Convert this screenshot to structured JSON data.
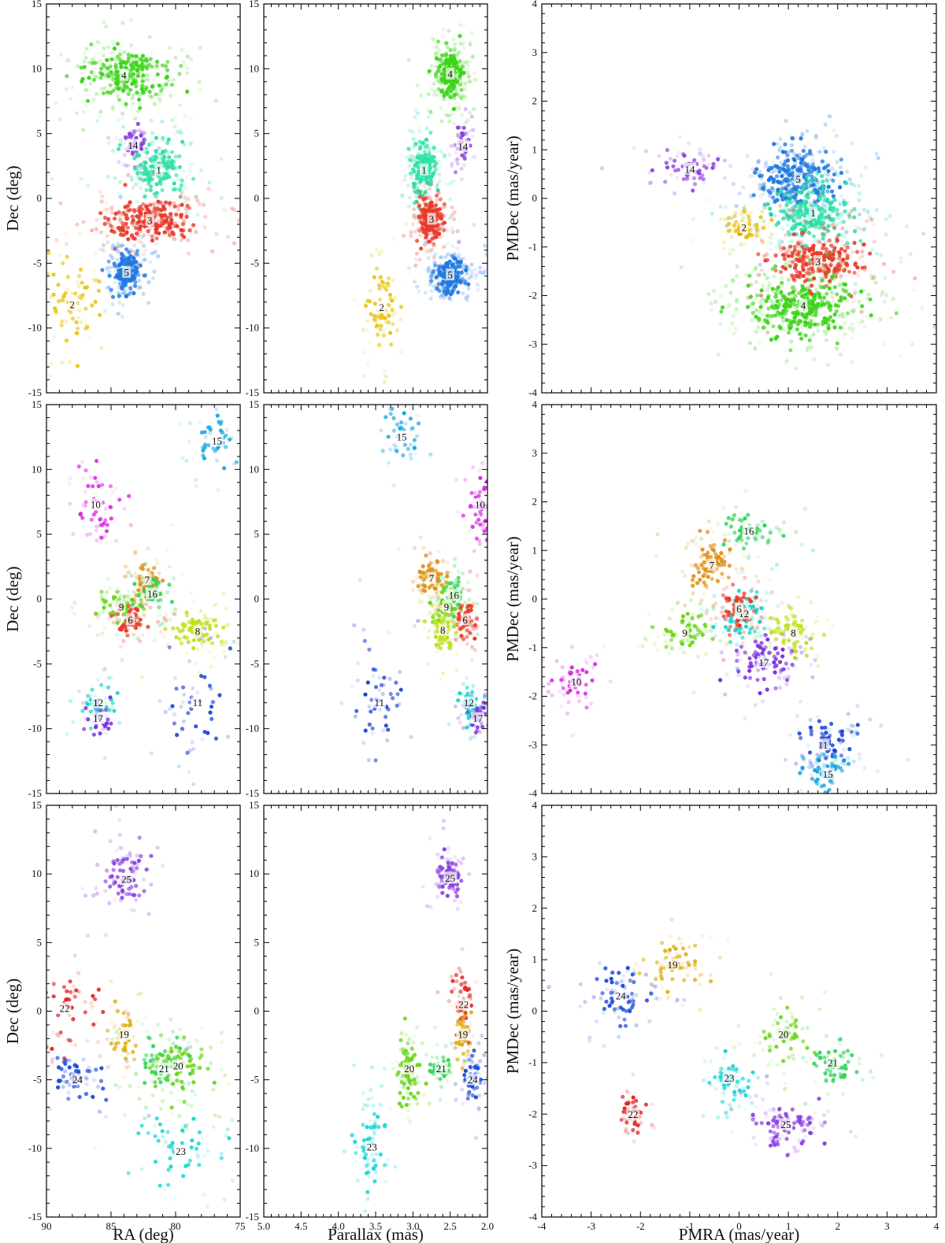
{
  "chart_data": [
    {
      "type": "scatter",
      "panel": "row1-radec",
      "xlabel": "",
      "ylabel": "Dec (deg)",
      "xlim": [
        90,
        75
      ],
      "ylim": [
        -15,
        15
      ],
      "xticks": [],
      "yticks": [
        "15",
        "10",
        "5",
        "0",
        "-5",
        "-10",
        "-15"
      ],
      "clusters": [
        {
          "name": "4",
          "color": "#3dd41a",
          "x": 84,
          "y": 9.5,
          "sx": 1.6,
          "sy": 0.9,
          "n": 320
        },
        {
          "name": "14",
          "color": "#8a3fe0",
          "x": 83.3,
          "y": 4.1,
          "sx": 0.5,
          "sy": 0.6,
          "n": 60
        },
        {
          "name": "1",
          "color": "#2fe0a8",
          "x": 81.3,
          "y": 2.2,
          "sx": 1.0,
          "sy": 1.0,
          "n": 220
        },
        {
          "name": "3",
          "color": "#e83a2a",
          "x": 82.0,
          "y": -1.7,
          "sx": 1.6,
          "sy": 0.7,
          "n": 320
        },
        {
          "name": "5",
          "color": "#1f78e0",
          "x": 83.8,
          "y": -5.7,
          "sx": 0.5,
          "sy": 0.8,
          "n": 240
        },
        {
          "name": "2",
          "color": "#e6c81a",
          "x": 88.0,
          "y": -8.2,
          "sx": 1.0,
          "sy": 1.6,
          "n": 90
        }
      ]
    },
    {
      "type": "scatter",
      "panel": "row1-parallax",
      "xlabel": "",
      "ylabel": "",
      "xlim": [
        5.0,
        2.0
      ],
      "ylim": [
        -15,
        15
      ],
      "xticks": [],
      "yticks": [
        "15",
        "10",
        "5",
        "0",
        "-5",
        "-10",
        "-15"
      ],
      "clusters": [
        {
          "name": "4",
          "color": "#3dd41a",
          "x": 2.5,
          "y": 9.6,
          "sx": 0.09,
          "sy": 0.9,
          "n": 300
        },
        {
          "name": "14",
          "color": "#8a3fe0",
          "x": 2.33,
          "y": 4.0,
          "sx": 0.05,
          "sy": 0.7,
          "n": 60
        },
        {
          "name": "1",
          "color": "#2fe0a8",
          "x": 2.85,
          "y": 2.2,
          "sx": 0.08,
          "sy": 1.0,
          "n": 240
        },
        {
          "name": "3",
          "color": "#e83a2a",
          "x": 2.75,
          "y": -1.6,
          "sx": 0.08,
          "sy": 0.8,
          "n": 260
        },
        {
          "name": "5",
          "color": "#1f78e0",
          "x": 2.5,
          "y": -5.9,
          "sx": 0.11,
          "sy": 0.6,
          "n": 300
        },
        {
          "name": "2",
          "color": "#e6c81a",
          "x": 3.42,
          "y": -8.4,
          "sx": 0.09,
          "sy": 1.5,
          "n": 90
        }
      ]
    },
    {
      "type": "scatter",
      "panel": "row1-pm",
      "xlabel": "",
      "ylabel": "PMDec (mas/year)",
      "xlim": [
        -4,
        4
      ],
      "ylim": [
        -4,
        4
      ],
      "xticks": [],
      "yticks": [
        "4",
        "3",
        "2",
        "1",
        "0",
        "-1",
        "-2",
        "-3",
        "-4"
      ],
      "clusters": [
        {
          "name": "14",
          "color": "#8a3fe0",
          "x": -1.0,
          "y": 0.6,
          "sx": 0.3,
          "sy": 0.15,
          "n": 70
        },
        {
          "name": "5",
          "color": "#1f78e0",
          "x": 1.2,
          "y": 0.4,
          "sx": 0.35,
          "sy": 0.3,
          "n": 380
        },
        {
          "name": "1",
          "color": "#2fe0a8",
          "x": 1.5,
          "y": -0.3,
          "sx": 0.35,
          "sy": 0.3,
          "n": 300
        },
        {
          "name": "2",
          "color": "#e6c81a",
          "x": 0.1,
          "y": -0.6,
          "sx": 0.2,
          "sy": 0.15,
          "n": 90
        },
        {
          "name": "3",
          "color": "#e83a2a",
          "x": 1.6,
          "y": -1.3,
          "sx": 0.4,
          "sy": 0.25,
          "n": 320
        },
        {
          "name": "4",
          "color": "#3dd41a",
          "x": 1.3,
          "y": -2.2,
          "sx": 0.5,
          "sy": 0.3,
          "n": 460
        }
      ]
    },
    {
      "type": "scatter",
      "panel": "row2-radec",
      "xlabel": "",
      "ylabel": "Dec (deg)",
      "xlim": [
        90,
        75
      ],
      "ylim": [
        -15,
        15
      ],
      "xticks": [],
      "yticks": [
        "15",
        "10",
        "5",
        "0",
        "-5",
        "-10",
        "-15"
      ],
      "clusters": [
        {
          "name": "15",
          "color": "#1aa6e0",
          "x": 76.8,
          "y": 12.2,
          "sx": 0.8,
          "sy": 0.9,
          "n": 50
        },
        {
          "name": "10",
          "color": "#d92be0",
          "x": 86.2,
          "y": 7.3,
          "sx": 1.0,
          "sy": 1.3,
          "n": 60
        },
        {
          "name": "7",
          "color": "#e0921a",
          "x": 82.2,
          "y": 1.5,
          "sx": 0.5,
          "sy": 0.6,
          "n": 80
        },
        {
          "name": "16",
          "color": "#2ed45a",
          "x": 81.8,
          "y": 0.4,
          "sx": 0.6,
          "sy": 0.8,
          "n": 60
        },
        {
          "name": "9",
          "color": "#6ad61a",
          "x": 84.2,
          "y": -0.6,
          "sx": 0.8,
          "sy": 0.6,
          "n": 90
        },
        {
          "name": "6",
          "color": "#e83a2a",
          "x": 83.5,
          "y": -1.6,
          "sx": 0.6,
          "sy": 0.5,
          "n": 80
        },
        {
          "name": "8",
          "color": "#bfe01a",
          "x": 78.3,
          "y": -2.5,
          "sx": 1.0,
          "sy": 0.7,
          "n": 110
        },
        {
          "name": "11",
          "color": "#1a3fd9",
          "x": 78.3,
          "y": -8.0,
          "sx": 1.1,
          "sy": 2.0,
          "n": 60
        },
        {
          "name": "12",
          "color": "#1ad6c8",
          "x": 86.0,
          "y": -8.0,
          "sx": 0.6,
          "sy": 0.8,
          "n": 50
        },
        {
          "name": "17",
          "color": "#7a2fe0",
          "x": 86.0,
          "y": -9.2,
          "sx": 0.5,
          "sy": 0.7,
          "n": 40
        }
      ]
    },
    {
      "type": "scatter",
      "panel": "row2-parallax",
      "xlabel": "",
      "ylabel": "",
      "xlim": [
        5.0,
        2.0
      ],
      "ylim": [
        -15,
        15
      ],
      "xticks": [],
      "yticks": [
        "15",
        "10",
        "5",
        "0",
        "-5",
        "-10",
        "-15"
      ],
      "clusters": [
        {
          "name": "15",
          "color": "#1aa6e0",
          "x": 3.15,
          "y": 12.5,
          "sx": 0.1,
          "sy": 0.9,
          "n": 50
        },
        {
          "name": "10",
          "color": "#d92be0",
          "x": 2.1,
          "y": 7.3,
          "sx": 0.08,
          "sy": 1.3,
          "n": 60
        },
        {
          "name": "7",
          "color": "#e0921a",
          "x": 2.75,
          "y": 1.6,
          "sx": 0.09,
          "sy": 0.7,
          "n": 100
        },
        {
          "name": "16",
          "color": "#2ed45a",
          "x": 2.45,
          "y": 0.3,
          "sx": 0.07,
          "sy": 0.8,
          "n": 60
        },
        {
          "name": "9",
          "color": "#6ad61a",
          "x": 2.55,
          "y": -0.6,
          "sx": 0.08,
          "sy": 0.7,
          "n": 90
        },
        {
          "name": "6",
          "color": "#e83a2a",
          "x": 2.3,
          "y": -1.6,
          "sx": 0.08,
          "sy": 0.6,
          "n": 90
        },
        {
          "name": "8",
          "color": "#bfe01a",
          "x": 2.6,
          "y": -2.4,
          "sx": 0.08,
          "sy": 0.8,
          "n": 90
        },
        {
          "name": "11",
          "color": "#1a3fd9",
          "x": 3.45,
          "y": -8.0,
          "sx": 0.12,
          "sy": 2.0,
          "n": 60
        },
        {
          "name": "12",
          "color": "#1ad6c8",
          "x": 2.25,
          "y": -8.0,
          "sx": 0.08,
          "sy": 0.8,
          "n": 60
        },
        {
          "name": "17",
          "color": "#7a2fe0",
          "x": 2.13,
          "y": -9.2,
          "sx": 0.07,
          "sy": 0.7,
          "n": 50
        }
      ]
    },
    {
      "type": "scatter",
      "panel": "row2-pm",
      "xlabel": "",
      "ylabel": "PMDec (mas/year)",
      "xlim": [
        -4,
        4
      ],
      "ylim": [
        -4,
        4
      ],
      "xticks": [],
      "yticks": [
        "4",
        "3",
        "2",
        "1",
        "0",
        "-1",
        "-2",
        "-3",
        "-4"
      ],
      "clusters": [
        {
          "name": "16",
          "color": "#2ed45a",
          "x": 0.2,
          "y": 1.4,
          "sx": 0.3,
          "sy": 0.2,
          "n": 70
        },
        {
          "name": "7",
          "color": "#e0921a",
          "x": -0.55,
          "y": 0.7,
          "sx": 0.2,
          "sy": 0.25,
          "n": 120
        },
        {
          "name": "12",
          "color": "#1ad6c8",
          "x": 0.1,
          "y": -0.3,
          "sx": 0.25,
          "sy": 0.25,
          "n": 100
        },
        {
          "name": "6",
          "color": "#e83a2a",
          "x": 0.0,
          "y": -0.2,
          "sx": 0.2,
          "sy": 0.2,
          "n": 80
        },
        {
          "name": "9",
          "color": "#6ad61a",
          "x": -1.1,
          "y": -0.7,
          "sx": 0.25,
          "sy": 0.2,
          "n": 90
        },
        {
          "name": "8",
          "color": "#bfe01a",
          "x": 1.1,
          "y": -0.7,
          "sx": 0.25,
          "sy": 0.2,
          "n": 90
        },
        {
          "name": "17",
          "color": "#7a2fe0",
          "x": 0.5,
          "y": -1.3,
          "sx": 0.3,
          "sy": 0.25,
          "n": 110
        },
        {
          "name": "10",
          "color": "#d92be0",
          "x": -3.3,
          "y": -1.7,
          "sx": 0.2,
          "sy": 0.2,
          "n": 60
        },
        {
          "name": "11",
          "color": "#1a3fd9",
          "x": 1.7,
          "y": -3.0,
          "sx": 0.25,
          "sy": 0.25,
          "n": 80
        },
        {
          "name": "15",
          "color": "#1aa6e0",
          "x": 1.8,
          "y": -3.6,
          "sx": 0.25,
          "sy": 0.25,
          "n": 80
        }
      ]
    },
    {
      "type": "scatter",
      "panel": "row3-radec",
      "xlabel": "RA (deg)",
      "ylabel": "Dec (deg)",
      "xlim": [
        90,
        75
      ],
      "ylim": [
        -15,
        15
      ],
      "xticks": [
        "90",
        "85",
        "80",
        "75"
      ],
      "yticks": [
        "15",
        "10",
        "5",
        "0",
        "-5",
        "-10",
        "-15"
      ],
      "clusters": [
        {
          "name": "25",
          "color": "#8a3fe0",
          "x": 83.8,
          "y": 9.6,
          "sx": 0.8,
          "sy": 0.9,
          "n": 100
        },
        {
          "name": "22",
          "color": "#e02a2a",
          "x": 88.6,
          "y": 0.2,
          "sx": 1.0,
          "sy": 1.5,
          "n": 60
        },
        {
          "name": "19",
          "color": "#e0b01a",
          "x": 84.0,
          "y": -1.7,
          "sx": 0.6,
          "sy": 0.9,
          "n": 60
        },
        {
          "name": "21",
          "color": "#2ed45a",
          "x": 80.9,
          "y": -4.2,
          "sx": 1.1,
          "sy": 1.0,
          "n": 80
        },
        {
          "name": "20",
          "color": "#6ad61a",
          "x": 79.8,
          "y": -4.0,
          "sx": 1.3,
          "sy": 1.1,
          "n": 100
        },
        {
          "name": "24",
          "color": "#1a4ad9",
          "x": 87.6,
          "y": -5.0,
          "sx": 1.3,
          "sy": 0.8,
          "n": 70
        },
        {
          "name": "23",
          "color": "#1ad6d6",
          "x": 79.6,
          "y": -10.2,
          "sx": 1.6,
          "sy": 1.3,
          "n": 60
        }
      ]
    },
    {
      "type": "scatter",
      "panel": "row3-parallax",
      "xlabel": "Parallax (mas)",
      "ylabel": "",
      "xlim": [
        5.0,
        2.0
      ],
      "ylim": [
        -15,
        15
      ],
      "xticks": [
        "5.0",
        "4.5",
        "4.0",
        "3.5",
        "3.0",
        "2.5",
        "2.0"
      ],
      "yticks": [
        "15",
        "10",
        "5",
        "0",
        "-5",
        "-10",
        "-15"
      ],
      "clusters": [
        {
          "name": "25",
          "color": "#8a3fe0",
          "x": 2.5,
          "y": 9.7,
          "sx": 0.08,
          "sy": 0.8,
          "n": 100
        },
        {
          "name": "22",
          "color": "#e02a2a",
          "x": 2.32,
          "y": 0.5,
          "sx": 0.06,
          "sy": 1.2,
          "n": 60
        },
        {
          "name": "19",
          "color": "#e0b01a",
          "x": 2.33,
          "y": -1.7,
          "sx": 0.05,
          "sy": 0.9,
          "n": 60
        },
        {
          "name": "20",
          "color": "#6ad61a",
          "x": 3.05,
          "y": -4.2,
          "sx": 0.08,
          "sy": 1.2,
          "n": 100
        },
        {
          "name": "21",
          "color": "#2ed45a",
          "x": 2.62,
          "y": -4.2,
          "sx": 0.07,
          "sy": 0.5,
          "n": 50
        },
        {
          "name": "24",
          "color": "#1a4ad9",
          "x": 2.2,
          "y": -5.0,
          "sx": 0.06,
          "sy": 0.8,
          "n": 60
        },
        {
          "name": "23",
          "color": "#1ad6d6",
          "x": 3.55,
          "y": -9.9,
          "sx": 0.1,
          "sy": 1.4,
          "n": 80
        }
      ]
    },
    {
      "type": "scatter",
      "panel": "row3-pm",
      "xlabel": "PMRA (mas/year)",
      "ylabel": "PMDec (mas/year)",
      "xlim": [
        -4,
        4
      ],
      "ylim": [
        -4,
        4
      ],
      "xticks": [
        "-4",
        "-3",
        "-2",
        "-1",
        "0",
        "1",
        "2",
        "3",
        "4"
      ],
      "yticks": [
        "4",
        "3",
        "2",
        "1",
        "0",
        "-1",
        "-2",
        "-3",
        "-4"
      ],
      "clusters": [
        {
          "name": "19",
          "color": "#e0b01a",
          "x": -1.35,
          "y": 0.9,
          "sx": 0.25,
          "sy": 0.2,
          "n": 80
        },
        {
          "name": "24",
          "color": "#1a4ad9",
          "x": -2.4,
          "y": 0.3,
          "sx": 0.3,
          "sy": 0.25,
          "n": 80
        },
        {
          "name": "20",
          "color": "#6ad61a",
          "x": 0.9,
          "y": -0.45,
          "sx": 0.25,
          "sy": 0.2,
          "n": 80
        },
        {
          "name": "21",
          "color": "#2ed45a",
          "x": 1.9,
          "y": -1.0,
          "sx": 0.25,
          "sy": 0.2,
          "n": 70
        },
        {
          "name": "23",
          "color": "#1ad6d6",
          "x": -0.2,
          "y": -1.3,
          "sx": 0.2,
          "sy": 0.2,
          "n": 70
        },
        {
          "name": "22",
          "color": "#e02a2a",
          "x": -2.15,
          "y": -2.0,
          "sx": 0.12,
          "sy": 0.2,
          "n": 50
        },
        {
          "name": "25",
          "color": "#8a3fe0",
          "x": 0.95,
          "y": -2.2,
          "sx": 0.35,
          "sy": 0.2,
          "n": 110
        }
      ]
    }
  ]
}
